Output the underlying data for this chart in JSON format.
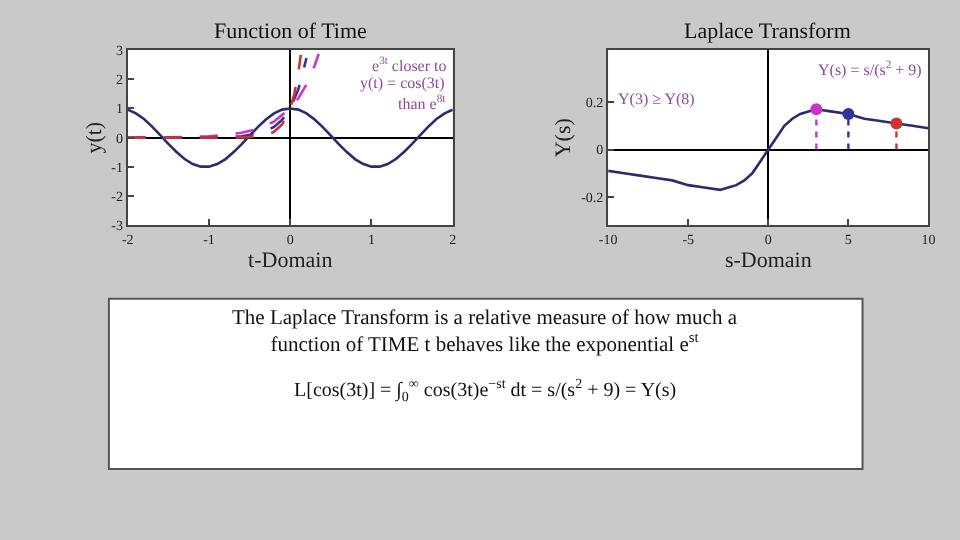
{
  "chart_data": [
    {
      "type": "line",
      "title": "Function of Time",
      "xlabel": "t-Domain",
      "ylabel": "y(t)",
      "xlim": [
        -2,
        2
      ],
      "xticks": [
        -2,
        -1,
        0,
        1,
        2
      ],
      "ylim": [
        -3,
        3
      ],
      "yticks": [
        -3,
        -2,
        -1,
        0,
        1,
        2,
        3
      ],
      "series": [
        {
          "color": "#2b2b70",
          "x": [
            -2,
            -1.9,
            -1.8,
            -1.7,
            -1.6,
            -1.5,
            -1.4,
            -1.3,
            -1.2,
            -1.1,
            -1,
            -0.9,
            -0.8,
            -0.7,
            -0.6,
            -0.5,
            -0.4,
            -0.3,
            -0.2,
            -0.1,
            0,
            0.1,
            0.2,
            0.3,
            0.4,
            0.5,
            0.6,
            0.7,
            0.8,
            0.9,
            1,
            1.1,
            1.2,
            1.3,
            1.4,
            1.5,
            1.6,
            1.7,
            1.8,
            1.9,
            2
          ],
          "values": [
            0.96,
            0.83,
            0.64,
            0.38,
            0.09,
            -0.21,
            -0.49,
            -0.73,
            -0.9,
            -0.99,
            -0.99,
            -0.9,
            -0.74,
            -0.5,
            -0.23,
            0.07,
            0.36,
            0.62,
            0.83,
            0.96,
            1,
            0.96,
            0.83,
            0.62,
            0.36,
            0.07,
            -0.23,
            -0.5,
            -0.74,
            -0.9,
            -0.99,
            -0.99,
            -0.9,
            -0.73,
            -0.49,
            -0.21,
            0.09,
            0.38,
            0.64,
            0.83,
            0.96
          ],
          "line_style": "solid"
        },
        {
          "color": "#cc33cc",
          "x": [
            -2,
            -1.5,
            -1,
            -0.8,
            -0.6,
            -0.4,
            -0.2,
            0,
            0.1,
            0.2,
            0.3,
            0.35
          ],
          "values": [
            0.0,
            0.01,
            0.05,
            0.09,
            0.17,
            0.3,
            0.55,
            1,
            1.35,
            1.82,
            2.46,
            2.86
          ],
          "line_style": "dashed"
        },
        {
          "color": "#333399",
          "x": [
            -2,
            -1,
            -0.6,
            -0.4,
            -0.3,
            -0.2,
            -0.1,
            0,
            0.1,
            0.2
          ],
          "values": [
            0.0,
            0.01,
            0.05,
            0.14,
            0.22,
            0.37,
            0.61,
            1,
            1.65,
            2.72
          ],
          "line_style": "dashed"
        },
        {
          "color": "#cc3333",
          "x": [
            -2,
            -0.6,
            -0.4,
            -0.3,
            -0.2,
            -0.1,
            0,
            0.05,
            0.1,
            0.13
          ],
          "values": [
            0.0,
            0.01,
            0.04,
            0.09,
            0.2,
            0.45,
            1,
            1.49,
            2.23,
            2.83
          ],
          "line_style": "dashed"
        }
      ],
      "annotations": [
        "e$^{3t}$ closer to",
        "y(t) = cos(3t)",
        "than e$^{8t}$"
      ]
    },
    {
      "type": "line",
      "title": "Laplace Transform",
      "xlabel": "s-Domain",
      "ylabel": "Y(s)",
      "xlim": [
        -10,
        10
      ],
      "xticks": [
        -10,
        -5,
        0,
        5,
        10
      ],
      "ylim": [
        -0.32,
        0.42
      ],
      "yticks": [
        -0.2,
        0,
        0.2
      ],
      "series": [
        {
          "color": "#2b2b70",
          "x": [
            -10,
            -9,
            -8,
            -7,
            -6,
            -5,
            -4,
            -3,
            -2.5,
            -2,
            -1.5,
            -1,
            -0.5,
            0,
            0.5,
            1,
            1.5,
            2,
            2.5,
            3,
            4,
            5,
            6,
            7,
            8,
            9,
            10
          ],
          "values": [
            -0.09,
            -0.1,
            -0.11,
            -0.12,
            -0.13,
            -0.15,
            -0.16,
            -0.17,
            -0.16,
            -0.15,
            -0.13,
            -0.1,
            -0.05,
            0,
            0.05,
            0.1,
            0.13,
            0.15,
            0.16,
            0.17,
            0.16,
            0.15,
            0.13,
            0.12,
            0.11,
            0.1,
            0.09
          ],
          "line_style": "solid"
        },
        {
          "type": "lollipop",
          "x": [
            3,
            5,
            8
          ],
          "values": [
            0.17,
            0.15,
            0.11
          ],
          "colors": [
            "#cc33cc",
            "#333399",
            "#cc3333"
          ],
          "line_style": "dotted",
          "marker": "circle"
        }
      ],
      "annotations": [
        "Y(s) = s/(s$^{2}$ + 9)",
        "Y(3) ≥ Y(8)"
      ]
    },
    {
      "type": "other",
      "title": "The Laplace Transform is a relative measure of how much a function of TIME t behaves like the exponential e$^{st}$",
      "annotations": [
        "L[cos(3t)] = ∫$_{0}$$^{∞}$ cos(3t)e$^{−st}$ dt = s/(s$^{2}$ + 9) = Y(s)"
      ]
    }
  ]
}
